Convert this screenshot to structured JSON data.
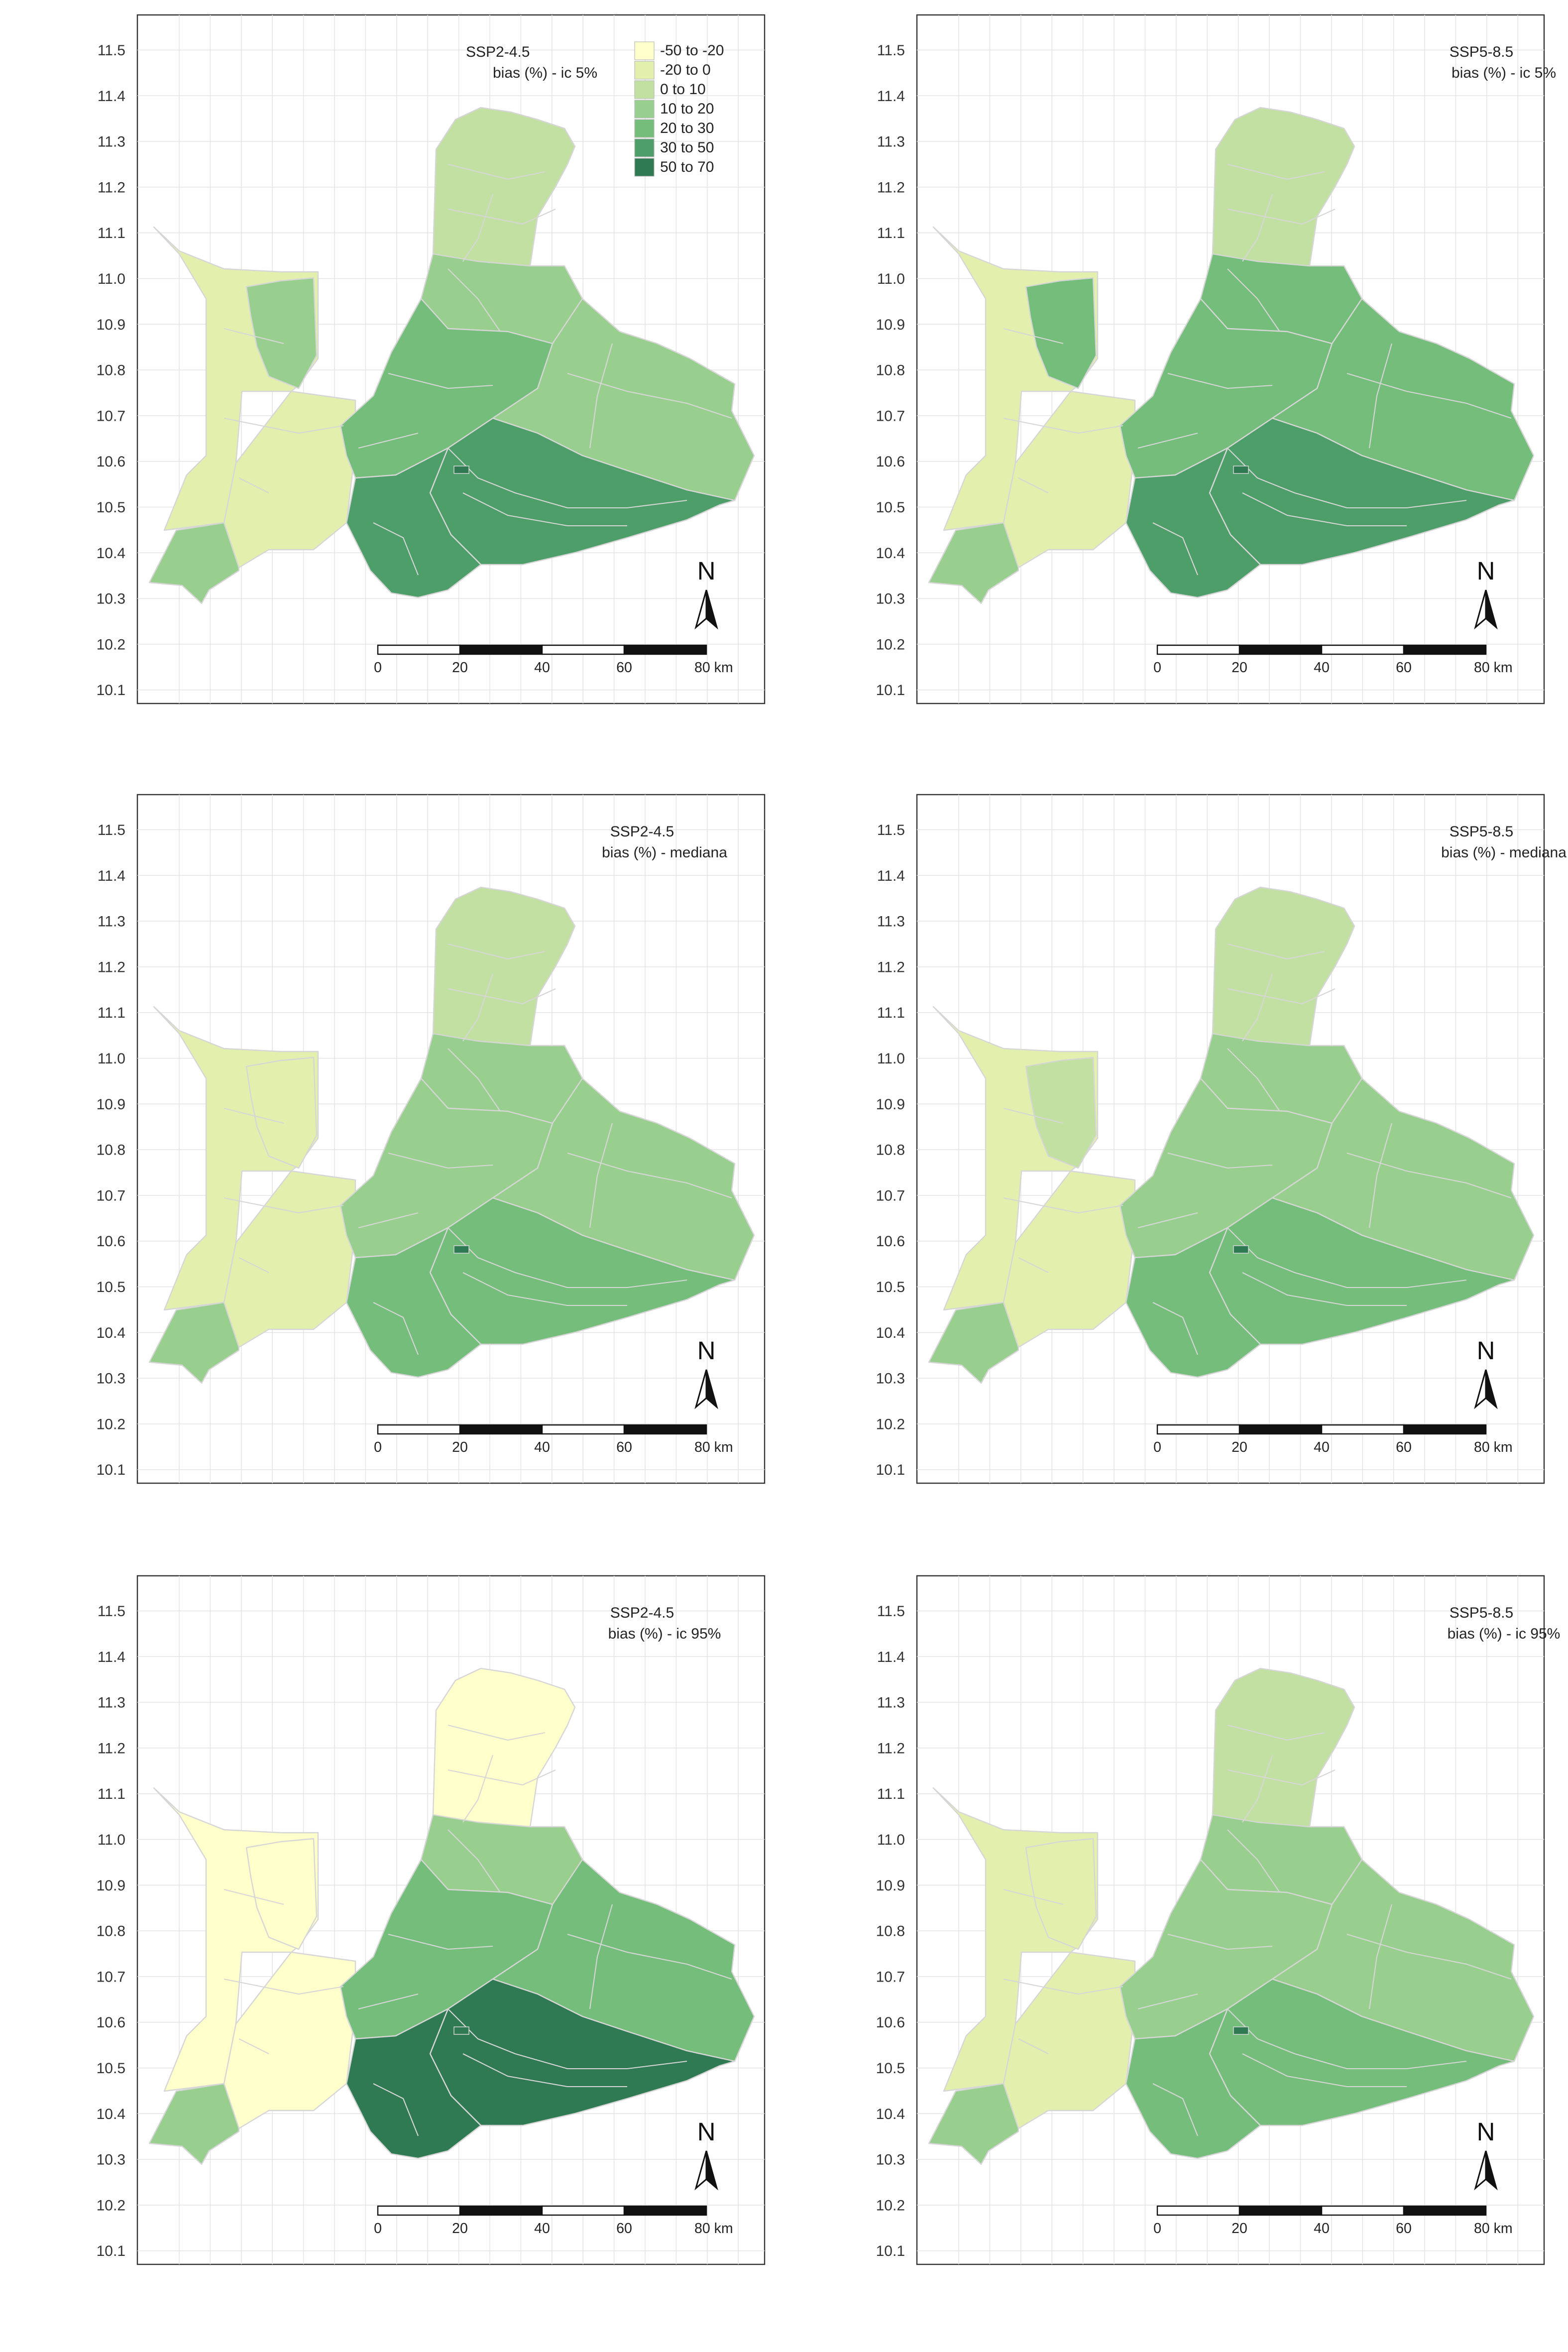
{
  "figure": {
    "y_ticks": [
      "11.5",
      "11.4",
      "11.3",
      "11.2",
      "11.1",
      "11.0",
      "10.9",
      "10.8",
      "10.7",
      "10.6",
      "10.5",
      "10.4",
      "10.3",
      "10.2",
      "10.1"
    ],
    "scale_labels": [
      "0",
      "20",
      "40",
      "60",
      "80 km"
    ],
    "north_label": "N",
    "legend": [
      {
        "label": "-50 to -20",
        "color": "#ffffcc"
      },
      {
        "label": "-20 to 0",
        "color": "#e3f0ad"
      },
      {
        "label": "0 to 10",
        "color": "#c2e0a1"
      },
      {
        "label": "10 to 20",
        "color": "#99cf8e"
      },
      {
        "label": "20 to 30",
        "color": "#74bd7a"
      },
      {
        "label": "30 to 50",
        "color": "#4e9e69"
      },
      {
        "label": "50 to 70",
        "color": "#2f7a52"
      }
    ]
  },
  "panels": [
    {
      "scenario": "SSP2-4.5",
      "stat": "bias (%) - ic 5%",
      "show_legend": true,
      "fills": {
        "W": 1,
        "WN": 3,
        "SW": 3,
        "CW": 1,
        "N": 2,
        "NC": 3,
        "C": 4,
        "E": 3,
        "SE": 5,
        "S": 5
      }
    },
    {
      "scenario": "SSP5-8.5",
      "stat": "bias (%) - ic 5%",
      "show_legend": false,
      "fills": {
        "W": 1,
        "WN": 4,
        "SW": 3,
        "CW": 1,
        "N": 2,
        "NC": 4,
        "C": 4,
        "E": 4,
        "SE": 5,
        "S": 5
      }
    },
    {
      "scenario": "SSP2-4.5",
      "stat": "bias (%) - mediana",
      "show_legend": false,
      "fills": {
        "W": 1,
        "WN": 1,
        "SW": 3,
        "CW": 1,
        "N": 2,
        "NC": 3,
        "C": 3,
        "E": 3,
        "SE": 4,
        "S": 4
      }
    },
    {
      "scenario": "SSP5-8.5",
      "stat": "bias (%) - mediana",
      "show_legend": false,
      "fills": {
        "W": 1,
        "WN": 2,
        "SW": 3,
        "CW": 1,
        "N": 2,
        "NC": 3,
        "C": 3,
        "E": 3,
        "SE": 4,
        "S": 4
      }
    },
    {
      "scenario": "SSP2-4.5",
      "stat": "bias (%) - ic 95%",
      "show_legend": false,
      "fills": {
        "W": 0,
        "WN": 0,
        "SW": 3,
        "CW": 0,
        "N": 0,
        "NC": 3,
        "C": 4,
        "E": 4,
        "SE": 6,
        "S": 6
      }
    },
    {
      "scenario": "SSP5-8.5",
      "stat": "bias (%) - ic 95%",
      "show_legend": false,
      "fills": {
        "W": 1,
        "WN": 1,
        "SW": 3,
        "CW": 1,
        "N": 2,
        "NC": 3,
        "C": 3,
        "E": 3,
        "SE": 4,
        "S": 4
      }
    }
  ]
}
